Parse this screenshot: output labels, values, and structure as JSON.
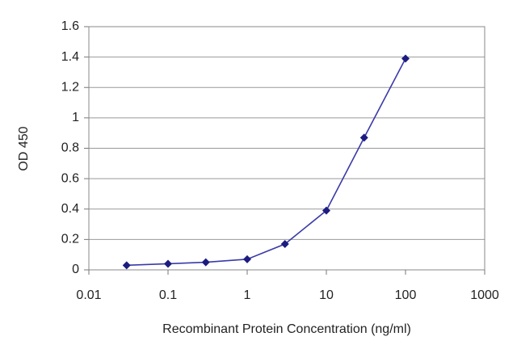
{
  "chart_data": {
    "type": "line",
    "x_label": "Recombinant Protein Concentration (ng/ml)",
    "y_label": "OD 450",
    "x": [
      0.03,
      0.1,
      0.3,
      1,
      3,
      10,
      30,
      100
    ],
    "series": [
      {
        "color": "#3a3aa8",
        "values": [
          0.03,
          0.04,
          0.05,
          0.07,
          0.17,
          0.39,
          0.87,
          1.39
        ]
      }
    ],
    "xscale": "log",
    "xlim": [
      0.01,
      1000
    ],
    "xticks": [
      0.01,
      0.1,
      1,
      10,
      100,
      1000
    ],
    "ylim": [
      0,
      1.6
    ],
    "yticks": [
      0,
      0.2,
      0.4,
      0.6,
      0.8,
      1,
      1.2,
      1.4,
      1.6
    ],
    "grid": true
  }
}
